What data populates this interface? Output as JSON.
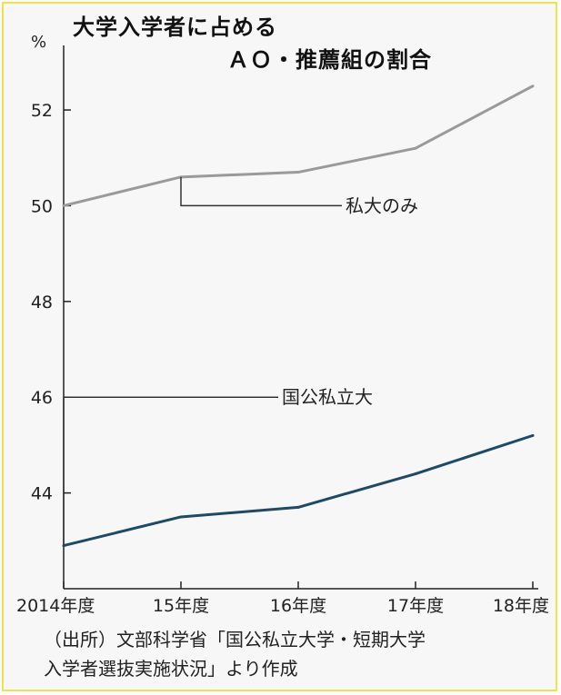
{
  "title": {
    "line1": "大学入学者に占める",
    "line2": "ＡＯ・推薦組の割合"
  },
  "source": {
    "line1": "（出所）文部科学省「国公私立大学・短期大学",
    "line2": "入学者選抜実施状況」より作成"
  },
  "chart_data": {
    "type": "line",
    "x": [
      "2014年度",
      "15年度",
      "16年度",
      "17年度",
      "18年度"
    ],
    "yunit": "%",
    "yticks": [
      44,
      46,
      48,
      50,
      52
    ],
    "ylim": [
      42,
      53.5
    ],
    "grid": false,
    "series": [
      {
        "name": "私大のみ",
        "color": "#9a9a9a",
        "values": [
          50.0,
          50.6,
          50.7,
          51.2,
          52.5
        ]
      },
      {
        "name": "国公私立大",
        "color": "#1e4a66",
        "values": [
          42.9,
          43.5,
          43.7,
          44.4,
          45.2
        ]
      }
    ],
    "frame_color": "#f2e24a",
    "axis_color": "#222222"
  }
}
